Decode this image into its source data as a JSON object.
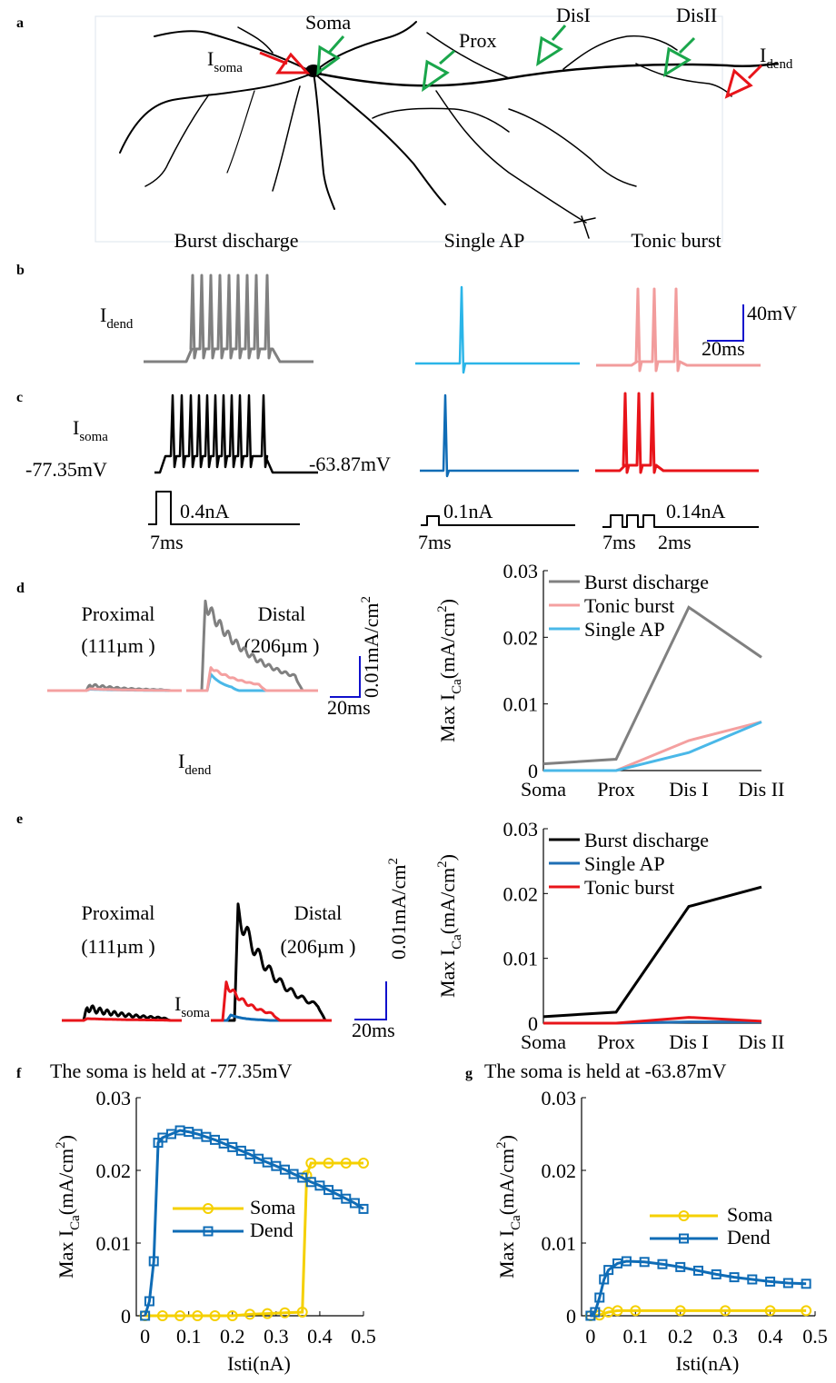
{
  "panel_a": {
    "letter": "a",
    "labels": {
      "soma": "Soma",
      "prox": "Prox",
      "dis1": "DisI",
      "dis2": "DisII"
    },
    "i_soma": {
      "main": "I",
      "sub": "soma"
    },
    "i_dend": {
      "main": "I",
      "sub": "dend"
    },
    "modes": [
      "Burst discharge",
      "Single AP",
      "Tonic burst"
    ]
  },
  "panel_b": {
    "letter": "b",
    "current": {
      "main": "I",
      "sub": "dend"
    },
    "scale_v": "40mV",
    "scale_t": "20ms"
  },
  "panel_c": {
    "letter": "c",
    "current": {
      "main": "I",
      "sub": "soma"
    },
    "holding": [
      "-77.35mV",
      "-63.87mV"
    ],
    "amplitudes": [
      "0.4nA",
      "0.1nA",
      "0.14nA"
    ],
    "durations": [
      "7ms",
      "7ms",
      "7ms",
      "2ms"
    ]
  },
  "panel_d": {
    "letter": "d",
    "regions": [
      "Proximal",
      "(111µm )",
      "Distal",
      "(206µm )"
    ],
    "scale_i": {
      "main": "0.01mA/cm",
      "sup": "2"
    },
    "scale_t": "20ms",
    "current": {
      "main": "I",
      "sub": "dend"
    }
  },
  "panel_e": {
    "letter": "e",
    "regions": [
      "Proximal",
      "(111µm )",
      "Distal",
      "(206µm )"
    ],
    "scale_i": {
      "main": "0.01mA/cm",
      "sup": "2"
    },
    "scale_t": "20ms",
    "current": {
      "main": "I",
      "sub": "soma"
    }
  },
  "chart_data": [
    {
      "type": "line",
      "categories": [
        "Soma",
        "Prox",
        "Dis I",
        "Dis II"
      ],
      "y_label": {
        "main": "Max I",
        "sub": "Ca",
        "unit": "(mA/cm",
        "sup": "2",
        "close": ")"
      },
      "ylim": [
        0,
        0.03
      ],
      "yticks": [
        0,
        0.01,
        0.02,
        0.03
      ],
      "legend": "upper left",
      "series": [
        {
          "name": "Burst discharge",
          "color": "#808080",
          "values": [
            0.001,
            0.0017,
            0.0245,
            0.017
          ]
        },
        {
          "name": "Tonic burst",
          "color": "#f4a0a0",
          "values": [
            0,
            0,
            0.0045,
            0.0073
          ]
        },
        {
          "name": "Single AP",
          "color": "#4ab8e8",
          "values": [
            0,
            0,
            0.0027,
            0.0073
          ]
        }
      ]
    },
    {
      "type": "line",
      "categories": [
        "Soma",
        "Prox",
        "Dis I",
        "Dis II"
      ],
      "y_label": {
        "main": "Max I",
        "sub": "Ca",
        "unit": "(mA/cm",
        "sup": "2",
        "close": ")"
      },
      "ylim": [
        0,
        0.03
      ],
      "yticks": [
        0,
        0.01,
        0.02,
        0.03
      ],
      "legend": "upper left",
      "series": [
        {
          "name": "Burst discharge",
          "color": "#000000",
          "values": [
            0.001,
            0.0017,
            0.018,
            0.021
          ]
        },
        {
          "name": "Single AP",
          "color": "#1f6fb5",
          "values": [
            0,
            0,
            0.0002,
            0.0002
          ]
        },
        {
          "name": "Tonic burst",
          "color": "#e8141a",
          "values": [
            0,
            0,
            0.0009,
            0.0003
          ]
        }
      ]
    },
    {
      "type": "line",
      "panel_letter": "f",
      "title": "The soma is held at -77.35mV",
      "x_label": "Isti(nA)",
      "y_label": {
        "main": "Max I",
        "sub": "Ca",
        "unit": "(mA/cm",
        "sup": "2",
        "close": ")"
      },
      "xlim": [
        -0.02,
        0.5
      ],
      "xticks": [
        0,
        0.1,
        0.2,
        0.3,
        0.4,
        0.5
      ],
      "ylim": [
        0,
        0.03
      ],
      "yticks": [
        0,
        0.01,
        0.02,
        0.03
      ],
      "legend": "center left",
      "series": [
        {
          "name": "Soma",
          "color": "#f5d000",
          "marker": "circle",
          "x": [
            0,
            0.04,
            0.08,
            0.12,
            0.16,
            0.2,
            0.24,
            0.28,
            0.32,
            0.36,
            0.37,
            0.38,
            0.42,
            0.46,
            0.5
          ],
          "values": [
            0,
            0,
            0,
            0,
            0,
            0,
            0.0002,
            0.0003,
            0.0004,
            0.0005,
            0.0193,
            0.021,
            0.021,
            0.021,
            0.021
          ]
        },
        {
          "name": "Dend",
          "color": "#0f6cb6",
          "marker": "square",
          "x": [
            0,
            0.01,
            0.02,
            0.03,
            0.04,
            0.06,
            0.08,
            0.1,
            0.12,
            0.14,
            0.16,
            0.18,
            0.2,
            0.22,
            0.24,
            0.26,
            0.28,
            0.3,
            0.32,
            0.34,
            0.36,
            0.38,
            0.4,
            0.42,
            0.44,
            0.46,
            0.48,
            0.5
          ],
          "values": [
            0,
            0.002,
            0.0075,
            0.0238,
            0.0245,
            0.025,
            0.0255,
            0.0253,
            0.025,
            0.0246,
            0.0242,
            0.0237,
            0.0232,
            0.0227,
            0.0222,
            0.0216,
            0.0211,
            0.0206,
            0.0201,
            0.0195,
            0.019,
            0.0184,
            0.0179,
            0.0173,
            0.0167,
            0.0161,
            0.0155,
            0.0147
          ]
        }
      ]
    },
    {
      "type": "line",
      "panel_letter": "g",
      "title": "The soma is held at -63.87mV",
      "x_label": "Isti(nA)",
      "y_label": {
        "main": "Max I",
        "sub": "Ca",
        "unit": "(mA/cm",
        "sup": "2",
        "close": ")"
      },
      "xlim": [
        -0.02,
        0.5
      ],
      "xticks": [
        0,
        0.1,
        0.2,
        0.3,
        0.4,
        0.5
      ],
      "ylim": [
        0,
        0.03
      ],
      "yticks": [
        0,
        0.01,
        0.02,
        0.03
      ],
      "legend": "upper center",
      "series": [
        {
          "name": "Soma",
          "color": "#f5d000",
          "marker": "circle",
          "x": [
            0,
            0.02,
            0.04,
            0.06,
            0.1,
            0.2,
            0.3,
            0.4,
            0.48
          ],
          "values": [
            0,
            0.0001,
            0.0005,
            0.0007,
            0.0007,
            0.0007,
            0.0007,
            0.0007,
            0.0007
          ]
        },
        {
          "name": "Dend",
          "color": "#0f6cb6",
          "marker": "square",
          "x": [
            0,
            0.01,
            0.02,
            0.03,
            0.04,
            0.06,
            0.08,
            0.12,
            0.16,
            0.2,
            0.24,
            0.28,
            0.32,
            0.36,
            0.4,
            0.44,
            0.48
          ],
          "values": [
            0,
            0.0005,
            0.0025,
            0.005,
            0.0063,
            0.0072,
            0.0075,
            0.0074,
            0.0071,
            0.0067,
            0.0062,
            0.0057,
            0.0053,
            0.005,
            0.0047,
            0.0045,
            0.0044
          ]
        }
      ]
    }
  ]
}
